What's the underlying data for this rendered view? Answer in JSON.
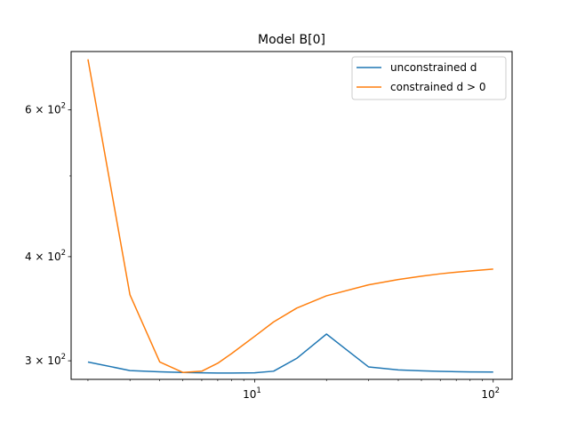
{
  "chart_data": {
    "type": "line",
    "title": "Model B[0]",
    "xscale": "log",
    "yscale": "log",
    "xlim": [
      1.7,
      120
    ],
    "ylim": [
      285,
      705
    ],
    "x_ticks": [
      {
        "value": 10,
        "base": "10",
        "exp": "1"
      },
      {
        "value": 100,
        "base": "10",
        "exp": "2"
      }
    ],
    "y_ticks": [
      {
        "value": 300,
        "mant": "3",
        "base": "10",
        "exp": "2"
      },
      {
        "value": 400,
        "mant": "4",
        "base": "10",
        "exp": "2"
      },
      {
        "value": 600,
        "mant": "6",
        "base": "10",
        "exp": "2"
      }
    ],
    "x_minor_ticks": [
      2,
      3,
      4,
      5,
      6,
      7,
      8,
      9,
      20,
      30,
      40,
      50,
      60,
      70,
      80,
      90
    ],
    "y_minor_ticks": [
      500
    ],
    "legend_position": "top-right",
    "series": [
      {
        "name": "unconstrained d",
        "color": "#1f77b4",
        "points": [
          [
            2,
            299
          ],
          [
            3,
            292
          ],
          [
            4,
            291
          ],
          [
            5,
            290.5
          ],
          [
            6,
            290.2
          ],
          [
            7,
            290
          ],
          [
            8,
            290
          ],
          [
            10,
            290.2
          ],
          [
            12,
            291.5
          ],
          [
            15,
            302
          ],
          [
            20,
            323
          ],
          [
            30,
            295
          ],
          [
            40,
            292.5
          ],
          [
            50,
            291.8
          ],
          [
            60,
            291.4
          ],
          [
            70,
            291.1
          ],
          [
            80,
            290.9
          ],
          [
            100,
            290.8
          ]
        ]
      },
      {
        "name": "constrained d > 0",
        "color": "#ff7f0e",
        "points": [
          [
            2,
            690
          ],
          [
            3,
            360
          ],
          [
            4,
            299
          ],
          [
            5,
            290.5
          ],
          [
            6,
            291.5
          ],
          [
            7,
            298
          ],
          [
            8,
            306
          ],
          [
            10,
            321
          ],
          [
            12,
            334
          ],
          [
            15,
            347
          ],
          [
            20,
            359
          ],
          [
            30,
            370
          ],
          [
            40,
            375.5
          ],
          [
            50,
            379
          ],
          [
            60,
            381.5
          ],
          [
            70,
            383.2
          ],
          [
            80,
            384.5
          ],
          [
            100,
            386.5
          ]
        ]
      }
    ]
  }
}
